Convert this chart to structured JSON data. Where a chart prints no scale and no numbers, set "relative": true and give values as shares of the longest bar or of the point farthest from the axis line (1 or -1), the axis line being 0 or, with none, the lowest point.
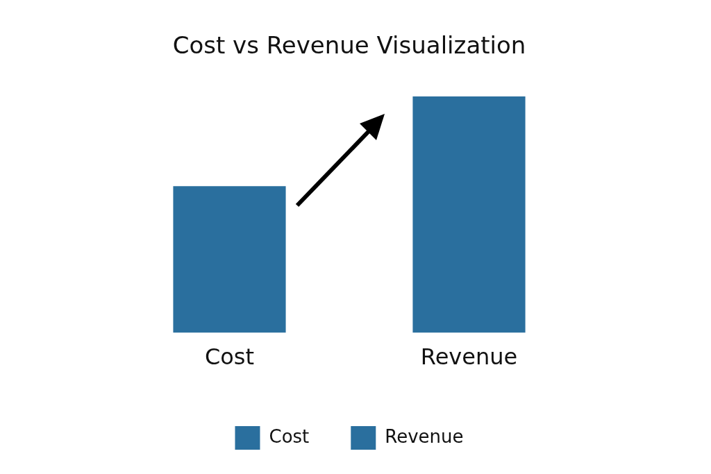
{
  "chart_data": {
    "type": "bar",
    "title": "Cost vs Revenue Visualization",
    "categories": [
      "Cost",
      "Revenue"
    ],
    "relative": true,
    "legend": "bottom",
    "grid": false,
    "series": [
      {
        "name": "Cost",
        "color": "#2a6f9e",
        "values": [
          0.62,
          null
        ]
      },
      {
        "name": "Revenue",
        "color": "#2a6f9e",
        "values": [
          null,
          1
        ]
      }
    ]
  }
}
